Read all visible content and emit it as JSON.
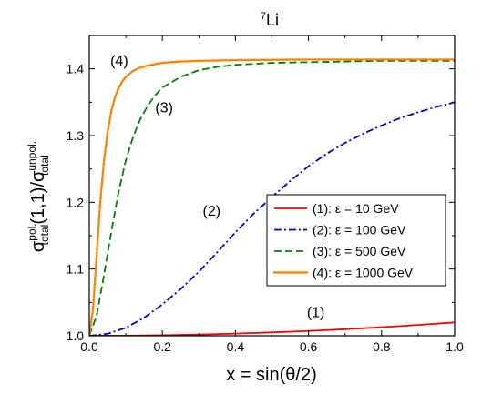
{
  "chart_data": {
    "type": "line",
    "title_sup": "7",
    "title_main": "Li",
    "xlabel": "x = sin(θ/2)",
    "ylabel": {
      "sigma1": "σ",
      "sup1": "pol.",
      "sub1": "total",
      "mid": "(1,1)/",
      "sigma2": "σ",
      "sup2": "unpol.",
      "sub2": "total"
    },
    "xlim": [
      0.0,
      1.0
    ],
    "ylim": [
      1.0,
      1.45
    ],
    "x_ticks": [
      "0.0",
      "0.2",
      "0.4",
      "0.6",
      "0.8",
      "1.0"
    ],
    "y_ticks": [
      "1.0",
      "1.1",
      "1.2",
      "1.3",
      "1.4"
    ],
    "grid": false,
    "legend_position": "center-right",
    "series": [
      {
        "name": "(1): ε = 10 GeV",
        "color": "#ff0000",
        "dash": "solid",
        "x": [
          0.0,
          0.1,
          0.2,
          0.3,
          0.4,
          0.5,
          0.6,
          0.7,
          0.8,
          0.9,
          1.0
        ],
        "y": [
          1.0,
          1.0002,
          1.0008,
          1.0018,
          1.0032,
          1.005,
          1.0072,
          1.0098,
          1.0128,
          1.0162,
          1.02
        ]
      },
      {
        "name": "(2): ε = 100 GeV",
        "color": "#0000cc",
        "dash": "dashdot",
        "x": [
          0.0,
          0.05,
          0.1,
          0.15,
          0.2,
          0.25,
          0.3,
          0.35,
          0.4,
          0.45,
          0.5,
          0.55,
          0.6,
          0.65,
          0.7,
          0.75,
          0.8,
          0.85,
          0.9,
          0.95,
          1.0
        ],
        "y": [
          1.0,
          1.003,
          1.012,
          1.027,
          1.047,
          1.07,
          1.096,
          1.125,
          1.155,
          1.183,
          1.208,
          1.232,
          1.254,
          1.273,
          1.289,
          1.303,
          1.315,
          1.326,
          1.335,
          1.343,
          1.35
        ]
      },
      {
        "name": "(3): ε = 500 GeV",
        "color": "#008000",
        "dash": "dashed",
        "x": [
          0.0,
          0.02,
          0.04,
          0.06,
          0.08,
          0.1,
          0.12,
          0.14,
          0.16,
          0.18,
          0.2,
          0.25,
          0.3,
          0.35,
          0.4,
          0.5,
          0.6,
          0.7,
          0.8,
          0.9,
          1.0
        ],
        "y": [
          1.0,
          1.03,
          1.09,
          1.155,
          1.215,
          1.263,
          1.298,
          1.325,
          1.345,
          1.36,
          1.372,
          1.388,
          1.398,
          1.403,
          1.406,
          1.409,
          1.41,
          1.411,
          1.412,
          1.412,
          1.412
        ]
      },
      {
        "name": "(4): ε = 1000 GeV",
        "color": "#ff8000",
        "dash": "dotted",
        "x": [
          0.0,
          0.01,
          0.02,
          0.03,
          0.04,
          0.05,
          0.06,
          0.07,
          0.08,
          0.09,
          0.1,
          0.12,
          0.14,
          0.16,
          0.2,
          0.25,
          0.3,
          0.4,
          0.6,
          0.8,
          1.0
        ],
        "y": [
          1.0,
          1.04,
          1.12,
          1.2,
          1.262,
          1.305,
          1.336,
          1.357,
          1.371,
          1.381,
          1.388,
          1.397,
          1.402,
          1.405,
          1.409,
          1.411,
          1.412,
          1.413,
          1.414,
          1.414,
          1.414
        ]
      }
    ],
    "annotations": [
      {
        "text": "(4)",
        "x": 0.082,
        "y": 1.405
      },
      {
        "text": "(3)",
        "x": 0.205,
        "y": 1.335
      },
      {
        "text": "(2)",
        "x": 0.335,
        "y": 1.18
      },
      {
        "text": "(1)",
        "x": 0.62,
        "y": 1.028
      }
    ]
  }
}
